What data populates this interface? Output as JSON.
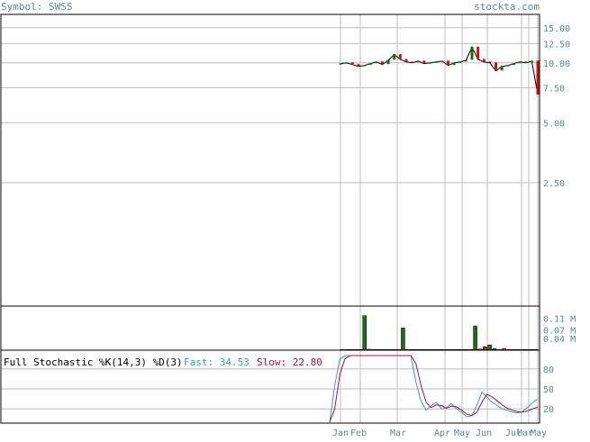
{
  "header": {
    "symbol_label": "Symbol: SWSS",
    "site": "stockta.com"
  },
  "chart_data": [
    {
      "type": "line",
      "panel": "price",
      "y_scale": "log",
      "y_ticks": [
        "15.00",
        "12.50",
        "10.00",
        "7.50",
        "5.00",
        "2.50"
      ],
      "y_tick_values": [
        15,
        12.5,
        10,
        7.5,
        5,
        2.5
      ],
      "ylim": [
        0.6,
        17.5
      ],
      "grid": true,
      "series": [
        {
          "values": [
            9.9,
            10.0,
            9.8,
            9.6,
            9.7,
            9.9,
            10.1,
            9.8,
            10.3,
            11.0,
            10.4,
            10.1,
            10.0,
            10.2,
            9.9,
            10.0,
            10.1,
            10.2,
            9.7,
            10.0,
            10.1,
            10.3,
            12.0,
            10.4,
            10.1,
            10.0,
            9.1,
            9.6,
            9.7,
            9.9,
            10.1,
            10.0,
            10.2,
            6.9
          ]
        }
      ]
    },
    {
      "type": "bar",
      "panel": "volume",
      "y_ticks": [
        "0.11 M",
        "0.07 M",
        "0.04 M"
      ],
      "y_tick_values": [
        0.11,
        0.07,
        0.04
      ],
      "ylim": [
        0,
        0.145
      ],
      "grid": false,
      "bars": [
        {
          "value": 0.001,
          "up": true
        },
        {
          "value": 0.001,
          "up": true
        },
        {
          "value": 0.001,
          "up": false
        },
        {
          "value": 0.001,
          "up": true
        },
        {
          "value": 0.001,
          "up": true
        },
        {
          "value": 0.118,
          "up": true
        },
        {
          "value": 0.003,
          "up": true
        },
        {
          "value": 0.002,
          "up": false
        },
        {
          "value": 0.001,
          "up": true
        },
        {
          "value": 0.002,
          "up": true
        },
        {
          "value": 0.001,
          "up": true
        },
        {
          "value": 0.001,
          "up": true
        },
        {
          "value": 0.001,
          "up": true
        },
        {
          "value": 0.076,
          "up": true
        },
        {
          "value": 0.002,
          "up": true
        },
        {
          "value": 0.001,
          "up": false
        },
        {
          "value": 0.001,
          "up": true
        },
        {
          "value": 0.001,
          "up": true
        },
        {
          "value": 0.001,
          "up": true
        },
        {
          "value": 0.001,
          "up": true
        },
        {
          "value": 0.001,
          "up": true
        },
        {
          "value": 0.001,
          "up": true
        },
        {
          "value": 0.001,
          "up": true
        },
        {
          "value": 0.001,
          "up": true
        },
        {
          "value": 0.001,
          "up": true
        },
        {
          "value": 0.001,
          "up": true
        },
        {
          "value": 0.001,
          "up": true
        },
        {
          "value": 0.001,
          "up": true
        },
        {
          "value": 0.083,
          "up": true
        },
        {
          "value": 0.004,
          "up": true
        },
        {
          "value": 0.012,
          "up": false
        },
        {
          "value": 0.018,
          "up": true
        },
        {
          "value": 0.006,
          "up": true
        },
        {
          "value": 0.001,
          "up": true
        },
        {
          "value": 0.006,
          "up": false
        },
        {
          "value": 0.001,
          "up": true
        },
        {
          "value": 0.001,
          "up": true
        },
        {
          "value": 0.001,
          "up": true
        },
        {
          "value": 0.001,
          "up": true
        },
        {
          "value": 0.001,
          "up": true
        },
        {
          "value": 0.001,
          "up": true
        },
        {
          "value": 0.001,
          "up": true
        }
      ]
    },
    {
      "type": "line",
      "panel": "stochastic",
      "title": "Full Stochastic %K(14,3) %D(3)",
      "fast_label": "Fast: 34.53",
      "slow_label": "Slow: 22.80",
      "y_ticks": [
        "80",
        "50",
        "20"
      ],
      "y_tick_values": [
        80,
        50,
        20
      ],
      "ylim": [
        0,
        100
      ],
      "grid": true,
      "series": [
        {
          "name": "Fast",
          "values": [
            0,
            55,
            95,
            100,
            100,
            100,
            100,
            100,
            100,
            100,
            100,
            100,
            100,
            100,
            100,
            100,
            100,
            60,
            32,
            18,
            25,
            30,
            20,
            22,
            28,
            20,
            15,
            8,
            10,
            25,
            45,
            38,
            30,
            25,
            20,
            18,
            15,
            14,
            16,
            22,
            30,
            34.53
          ]
        },
        {
          "name": "Slow",
          "values": [
            0,
            20,
            72,
            95,
            100,
            100,
            100,
            100,
            100,
            100,
            100,
            100,
            100,
            100,
            100,
            100,
            100,
            88,
            55,
            30,
            22,
            26,
            25,
            21,
            24,
            23,
            18,
            12,
            10,
            15,
            30,
            42,
            38,
            32,
            26,
            21,
            18,
            16,
            15,
            17,
            20,
            22.8
          ]
        }
      ]
    }
  ],
  "x_labels": [
    "Jan",
    "Feb",
    "Mar",
    "Apr",
    "May",
    "Jun",
    "Jul",
    "Mar",
    "May"
  ],
  "colors": {
    "up": "#1f6b1f",
    "down": "#c81414",
    "fast": "#3aa0a0",
    "slow": "#a01050",
    "text": "#5a8a8a",
    "grid": "#bdbdbd",
    "frame": "#000000"
  }
}
